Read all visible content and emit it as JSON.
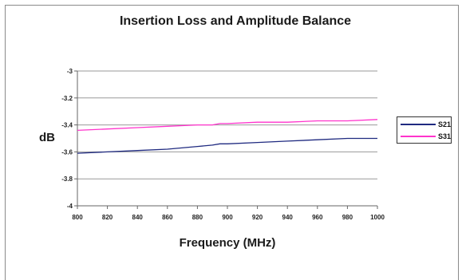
{
  "chart_data": {
    "type": "line",
    "title": "Insertion Loss and Amplitude Balance",
    "xlabel": "Frequency (MHz)",
    "ylabel": "dB",
    "xlim": [
      800,
      1000
    ],
    "ylim": [
      -4,
      -3
    ],
    "x_ticks": [
      "800",
      "820",
      "840",
      "860",
      "880",
      "900",
      "920",
      "940",
      "960",
      "980",
      "1000"
    ],
    "y_ticks": [
      "-3",
      "-3.2",
      "-3.4",
      "-3.6",
      "-3.8",
      "-4"
    ],
    "grid": "horizontal",
    "legend": "right",
    "x": [
      800,
      820,
      840,
      860,
      880,
      890,
      895,
      900,
      920,
      940,
      960,
      980,
      1000
    ],
    "series": [
      {
        "name": "S21",
        "color": "#1f2a80",
        "values": [
          -3.61,
          -3.6,
          -3.59,
          -3.58,
          -3.56,
          -3.55,
          -3.54,
          -3.54,
          -3.53,
          -3.52,
          -3.51,
          -3.5,
          -3.5
        ]
      },
      {
        "name": "S31",
        "color": "#ff33cc",
        "values": [
          -3.44,
          -3.43,
          -3.42,
          -3.41,
          -3.4,
          -3.4,
          -3.39,
          -3.39,
          -3.38,
          -3.38,
          -3.37,
          -3.37,
          -3.36
        ]
      }
    ]
  }
}
